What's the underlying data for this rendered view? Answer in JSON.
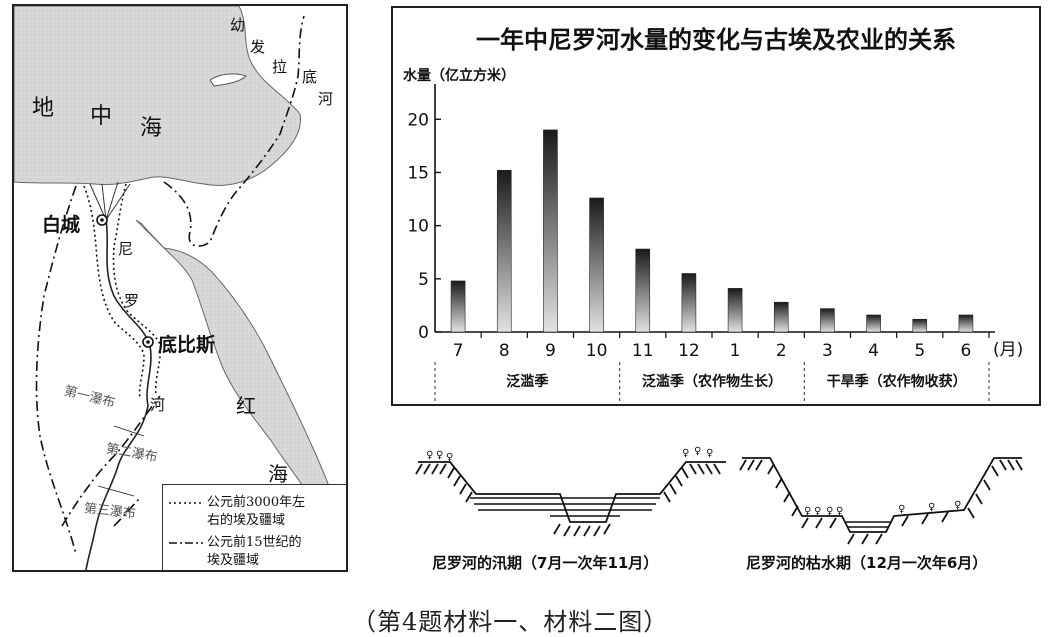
{
  "map": {
    "sea_mediterranean": [
      "地",
      "中",
      "海"
    ],
    "euphrates": [
      "幼",
      "发",
      "拉",
      "底",
      "河"
    ],
    "nile": [
      "尼",
      "罗",
      "河"
    ],
    "red_sea": [
      "红",
      "海"
    ],
    "city_white": "白城",
    "city_thebes": "底比斯",
    "cataract_1": "第一瀑布",
    "cataract_2": "第二瀑布",
    "cataract_3": "第三瀑布",
    "legend": [
      {
        "label_line1": "公元前3000年左",
        "label_line2": "右的埃及疆域",
        "style": "dotted"
      },
      {
        "label_line1": "公元前15世纪的",
        "label_line2": "埃及疆域",
        "style": "dash-dot"
      }
    ]
  },
  "chart_data": {
    "type": "bar",
    "title": "一年中尼罗河水量的变化与古埃及农业的关系",
    "ylabel": "水量（亿立方米）",
    "xlabel": "(月)",
    "categories": [
      "7",
      "8",
      "9",
      "10",
      "11",
      "12",
      "1",
      "2",
      "3",
      "4",
      "5",
      "6"
    ],
    "values": [
      4.8,
      15.2,
      19.0,
      12.6,
      7.8,
      5.5,
      4.1,
      2.8,
      2.2,
      1.6,
      1.2,
      1.6
    ],
    "ylim": [
      0,
      22
    ],
    "yticks": [
      "0",
      "5",
      "10",
      "15",
      "20"
    ],
    "ytick_values": [
      0,
      5,
      10,
      15,
      20
    ],
    "grid": false,
    "seasons": [
      {
        "label": "泛滥季",
        "start": 0,
        "end": 3
      },
      {
        "label": "泛滥季（农作物生长）",
        "start": 4,
        "end": 7
      },
      {
        "label": "干旱季（农作物收获）",
        "start": 8,
        "end": 11
      }
    ]
  },
  "diagrams": {
    "flood_title": "尼罗河的汛期（7月一次年11月）",
    "dry_title": "尼罗河的枯水期（12月一次年6月）"
  },
  "caption": "（第4题材料一、材料二图）"
}
